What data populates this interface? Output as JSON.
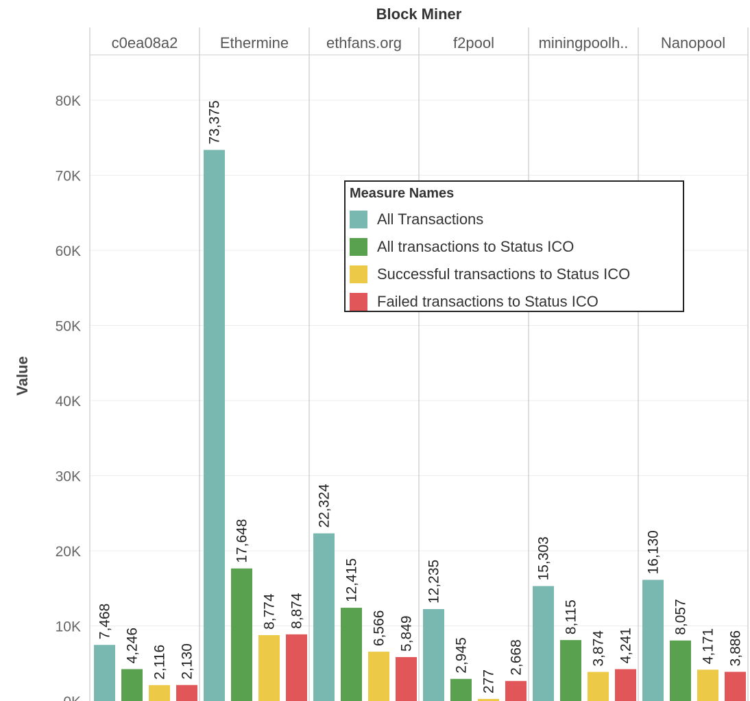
{
  "chart_data": {
    "type": "bar",
    "title": "Block Miner",
    "ylabel": "Value",
    "ylim": [
      0,
      85000
    ],
    "y_ticks": [
      0,
      10000,
      20000,
      30000,
      40000,
      50000,
      60000,
      70000,
      80000
    ],
    "y_tick_labels": [
      "0K",
      "10K",
      "20K",
      "30K",
      "40K",
      "50K",
      "60K",
      "70K",
      "80K"
    ],
    "grid": true,
    "legend_title": "Measure Names",
    "legend_position": "center",
    "categories": [
      "c0ea08a2",
      "Ethermine",
      "ethfans.org",
      "f2pool",
      "miningpoolh..",
      "Nanopool"
    ],
    "series": [
      {
        "name": "All Transactions",
        "color": "#79b7b1",
        "values": [
          7468,
          73375,
          22324,
          12235,
          15303,
          16130
        ],
        "labels": [
          "7,468",
          "73,375",
          "22,324",
          "12,235",
          "15,303",
          "16,130"
        ]
      },
      {
        "name": "All transactions to Status ICO",
        "color": "#59a14f",
        "values": [
          4246,
          17648,
          12415,
          2945,
          8115,
          8057
        ],
        "labels": [
          "4,246",
          "17,648",
          "12,415",
          "2,945",
          "8,115",
          "8,057"
        ]
      },
      {
        "name": "Successful transactions to Status ICO",
        "color": "#edc948",
        "values": [
          2116,
          8774,
          6566,
          277,
          3874,
          4171
        ],
        "labels": [
          "2,116",
          "8,774",
          "6,566",
          "277",
          "3,874",
          "4,171"
        ]
      },
      {
        "name": "Failed transactions to Status ICO",
        "color": "#e15759",
        "values": [
          2130,
          8874,
          5849,
          2668,
          4241,
          3886
        ],
        "labels": [
          "2,130",
          "8,874",
          "5,849",
          "2,668",
          "4,241",
          "3,886"
        ]
      }
    ]
  }
}
